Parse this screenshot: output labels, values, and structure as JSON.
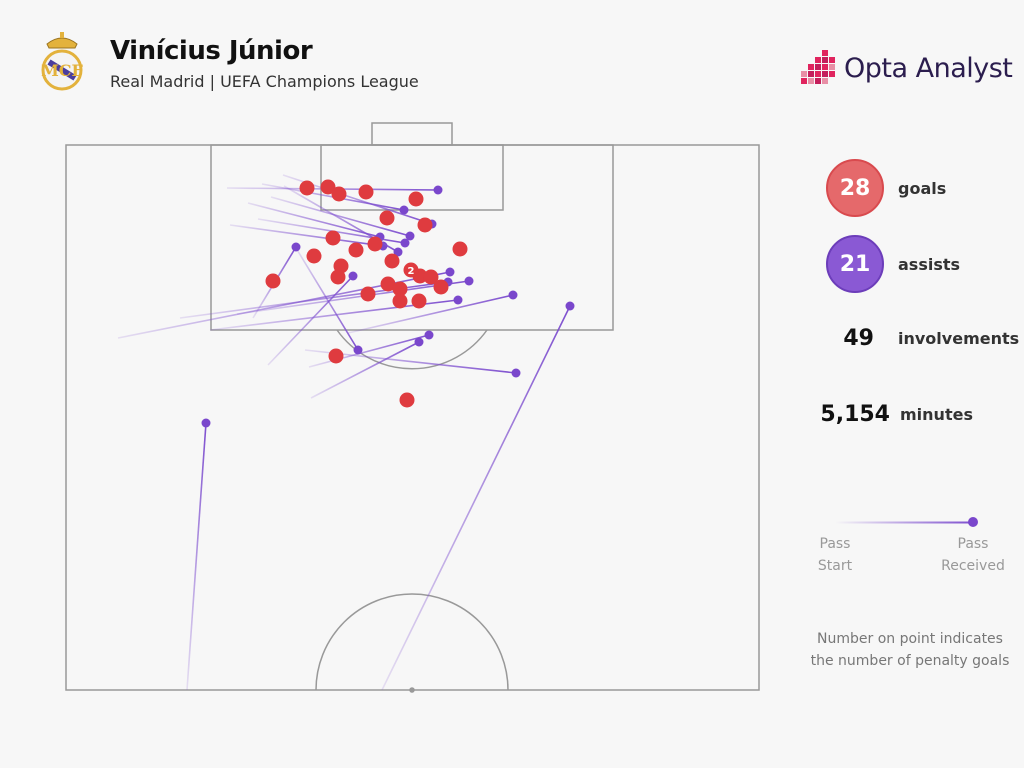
{
  "header": {
    "title": "Vinícius Júnior",
    "subtitle": "Real Madrid | UEFA Champions League",
    "brand": "Opta Analyst"
  },
  "stats": [
    {
      "value": "28",
      "label": "goals"
    },
    {
      "value": "21",
      "label": "assists"
    },
    {
      "value": "49",
      "label": "involvements"
    },
    {
      "value": "5,154",
      "label": "minutes"
    }
  ],
  "legend": {
    "start_line1": "Pass",
    "start_line2": "Start",
    "end_line1": "Pass",
    "end_line2": "Received"
  },
  "note": {
    "line1": "Number on point indicates",
    "line2": "the number of penalty goals"
  },
  "colors": {
    "goal": "#df3b3f",
    "assist_line": "#7e4fcf",
    "assist_point": "#7a47cc",
    "pitch_line": "#999999"
  },
  "chart_data": {
    "type": "scatter",
    "penalty_label": "2",
    "goals": [
      [
        307,
        188
      ],
      [
        328,
        187
      ],
      [
        339,
        194
      ],
      [
        366,
        192
      ],
      [
        416,
        199
      ],
      [
        387,
        218
      ],
      [
        425,
        225
      ],
      [
        333,
        238
      ],
      [
        356,
        250
      ],
      [
        375,
        244
      ],
      [
        460,
        249
      ],
      [
        314,
        256
      ],
      [
        392,
        261
      ],
      [
        341,
        266
      ],
      [
        273,
        281
      ],
      [
        338,
        277
      ],
      [
        388,
        284
      ],
      [
        400,
        289
      ],
      [
        420,
        276
      ],
      [
        431,
        277
      ],
      [
        441,
        287
      ],
      [
        368,
        294
      ],
      [
        400,
        301
      ],
      [
        419,
        301
      ],
      [
        336,
        356
      ],
      [
        407,
        400
      ],
      [
        411,
        270
      ]
    ],
    "assists": [
      [
        [
          227,
          188
        ],
        [
          438,
          190
        ]
      ],
      [
        [
          262,
          184
        ],
        [
          404,
          210
        ]
      ],
      [
        [
          283,
          175
        ],
        [
          432,
          224
        ]
      ],
      [
        [
          248,
          203
        ],
        [
          380,
          237
        ]
      ],
      [
        [
          271,
          197
        ],
        [
          410,
          236
        ]
      ],
      [
        [
          230,
          225
        ],
        [
          383,
          246
        ]
      ],
      [
        [
          258,
          219
        ],
        [
          405,
          243
        ]
      ],
      [
        [
          284,
          186
        ],
        [
          398,
          252
        ]
      ],
      [
        [
          118,
          338
        ],
        [
          450,
          272
        ]
      ],
      [
        [
          180,
          318
        ],
        [
          448,
          282
        ]
      ],
      [
        [
          237,
          314
        ],
        [
          469,
          281
        ]
      ],
      [
        [
          210,
          330
        ],
        [
          458,
          300
        ]
      ],
      [
        [
          348,
          333
        ],
        [
          513,
          295
        ]
      ],
      [
        [
          268,
          365
        ],
        [
          353,
          276
        ]
      ],
      [
        [
          309,
          367
        ],
        [
          429,
          335
        ]
      ],
      [
        [
          311,
          398
        ],
        [
          419,
          342
        ]
      ],
      [
        [
          305,
          350
        ],
        [
          516,
          373
        ]
      ],
      [
        [
          296,
          248
        ],
        [
          358,
          350
        ]
      ],
      [
        [
          253,
          318
        ],
        [
          296,
          247
        ]
      ],
      [
        [
          187,
          690
        ],
        [
          206,
          423
        ]
      ],
      [
        [
          382,
          690
        ],
        [
          570,
          306
        ]
      ]
    ]
  }
}
